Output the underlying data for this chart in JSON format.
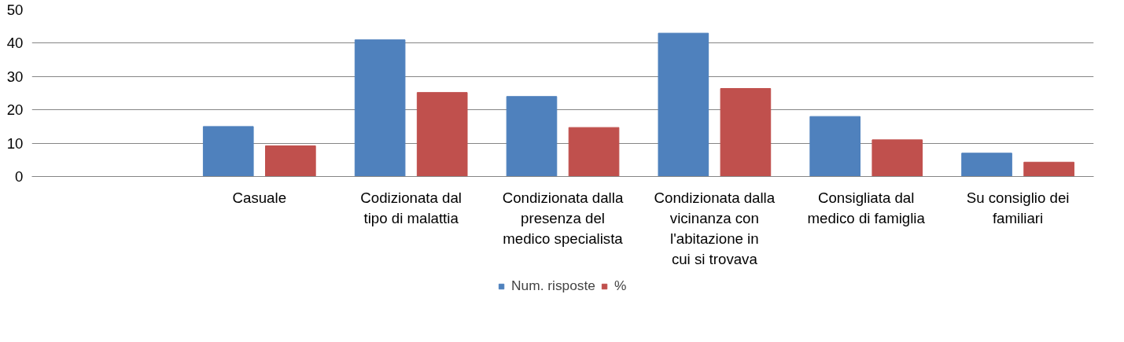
{
  "chart_data": {
    "type": "bar",
    "categories": [
      null,
      "Casuale",
      "Codizionata dal tipo di malattia",
      "Condizionata dalla presenza del medico specialista",
      "Condizionata dalla vicinanza con l'abitazione in cui si trovava",
      "Consigliata dal medico di famiglia",
      "Su consiglio dei familiari"
    ],
    "series": [
      {
        "name": "Num. risposte",
        "color": "#4f81bd",
        "values": [
          null,
          15,
          41,
          24,
          43,
          18,
          7
        ]
      },
      {
        "name": "%",
        "color": "#c0504d",
        "values": [
          null,
          9.2,
          25.2,
          14.7,
          26.4,
          11.0,
          4.3
        ]
      }
    ],
    "ylim": [
      0,
      50
    ],
    "yticks": [
      0,
      10,
      20,
      30,
      40,
      50
    ],
    "grid": "y",
    "legend": "bottom"
  }
}
